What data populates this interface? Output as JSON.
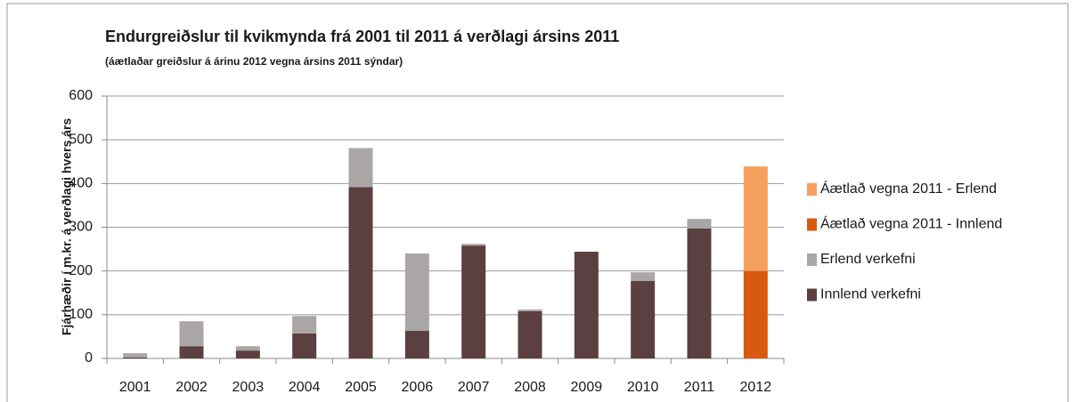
{
  "chart_data": {
    "type": "stacked_bar",
    "title": "Endurgreiðslur til kvikmynda frá 2001 til 2011 á verðlagi ársins 2011",
    "subtitle": "(áætlaðar greiðslur á árinu 2012 vegna ársins 2011 sýndar)",
    "y_label": "Fjárhæðir í m.kr. á verðlagi hvers árs",
    "categories": [
      "2001",
      "2002",
      "2003",
      "2004",
      "2005",
      "2006",
      "2007",
      "2008",
      "2009",
      "2010",
      "2011",
      "2012"
    ],
    "series": [
      {
        "name": "Innlend verkefni",
        "color": "#5b3f41",
        "values": [
          2,
          28,
          18,
          57,
          392,
          63,
          258,
          108,
          244,
          177,
          297,
          null
        ]
      },
      {
        "name": "Erlend verkefni",
        "color": "#aaa6a6",
        "values": [
          10,
          57,
          10,
          40,
          89,
          177,
          4,
          4,
          0,
          20,
          22,
          null
        ]
      },
      {
        "name": "Áætlað vegna 2011 - Innlend",
        "color": "#d9590f",
        "values": [
          null,
          null,
          null,
          null,
          null,
          null,
          null,
          null,
          null,
          null,
          null,
          200
        ]
      },
      {
        "name": "Áætlað vegna 2011 - Erlend",
        "color": "#f5a05c",
        "values": [
          null,
          null,
          null,
          null,
          null,
          null,
          null,
          null,
          null,
          null,
          null,
          239
        ]
      }
    ],
    "ylim": [
      0,
      600
    ],
    "yticks": [
      0,
      100,
      200,
      300,
      400,
      500,
      600
    ],
    "grid": true,
    "legend": "right"
  }
}
